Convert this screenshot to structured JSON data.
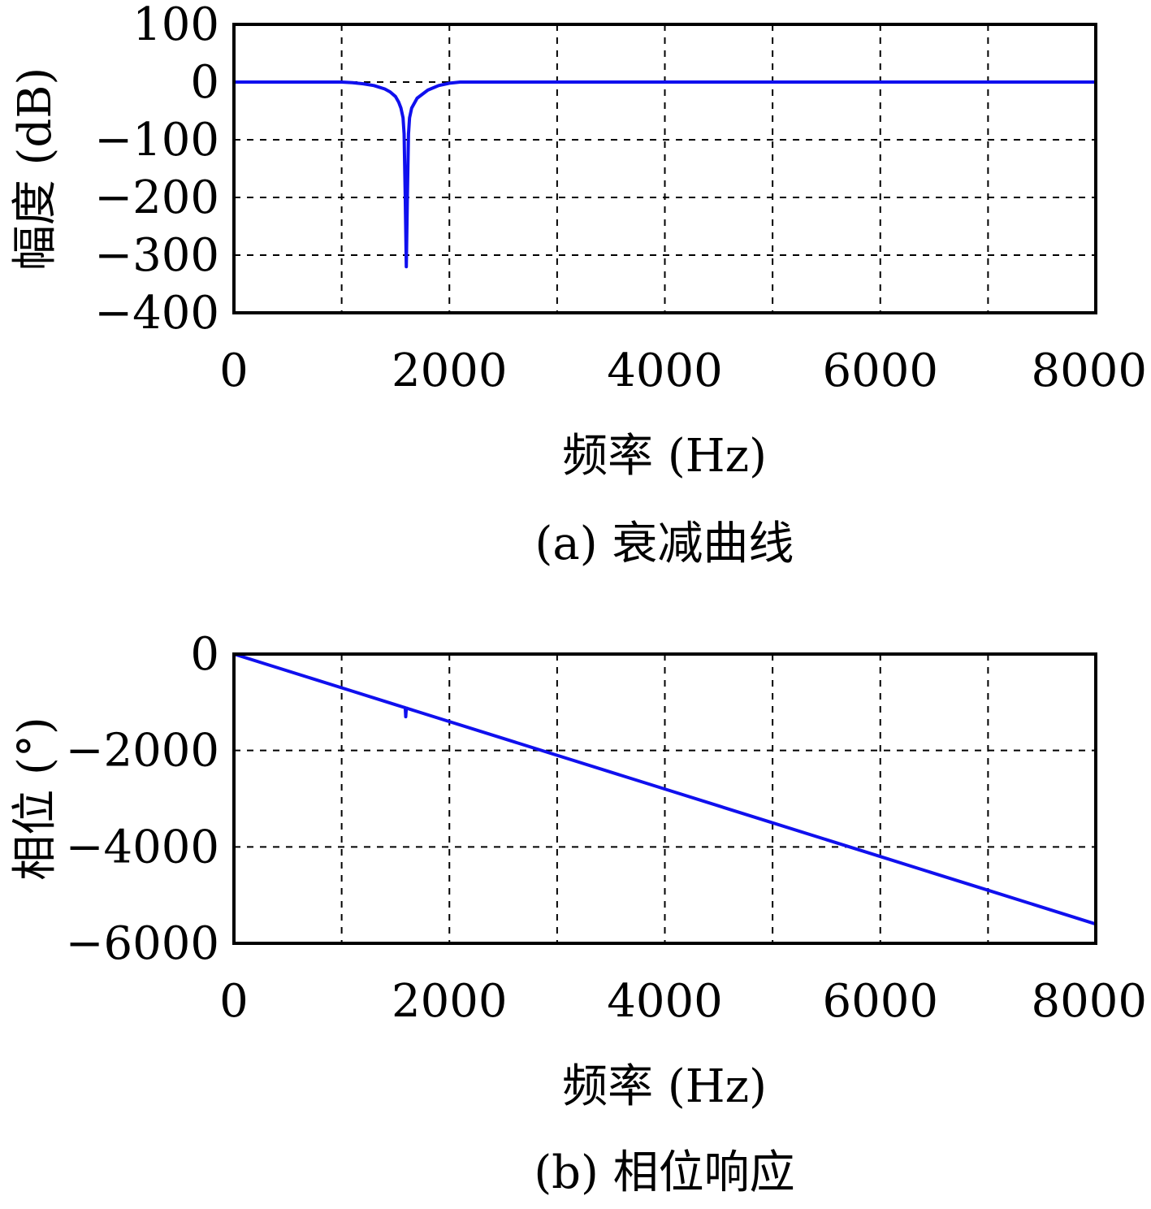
{
  "chart_data": [
    {
      "type": "line",
      "caption": "(a) 衰减曲线",
      "xlabel": "频率 (Hz)",
      "ylabel": "幅度 (dB)",
      "xlim": [
        0,
        8000
      ],
      "ylim": [
        -400,
        100
      ],
      "x_ticks": [
        0,
        2000,
        4000,
        6000,
        8000
      ],
      "x_tick_labels": [
        "0",
        "2000",
        "4000",
        "6000",
        "8000"
      ],
      "y_ticks": [
        100,
        0,
        -100,
        -200,
        -300,
        -400
      ],
      "y_tick_labels": [
        "100",
        "0",
        "−100",
        "−200",
        "−300",
        "−400"
      ],
      "grid": true,
      "color": "#1010ee",
      "series": [
        {
          "x": [
            0,
            1000,
            1100,
            1200,
            1300,
            1400,
            1450,
            1500,
            1530,
            1550,
            1570,
            1580,
            1590,
            1600,
            1610,
            1620,
            1630,
            1650,
            1700,
            1800,
            1900,
            2000,
            2100,
            3000,
            4000,
            5000,
            6000,
            7000,
            8000
          ],
          "y": [
            0,
            0,
            -1,
            -3,
            -6,
            -12,
            -17,
            -25,
            -35,
            -45,
            -62,
            -90,
            -200,
            -320,
            -200,
            -90,
            -62,
            -45,
            -28,
            -14,
            -6,
            -2,
            0,
            0,
            0,
            0,
            0,
            0,
            0
          ]
        }
      ]
    },
    {
      "type": "line",
      "caption": "(b) 相位响应",
      "xlabel": "频率 (Hz)",
      "ylabel": "相位 (°)",
      "xlim": [
        0,
        8000
      ],
      "ylim": [
        -6000,
        0
      ],
      "x_ticks": [
        0,
        2000,
        4000,
        6000,
        8000
      ],
      "x_tick_labels": [
        "0",
        "2000",
        "4000",
        "6000",
        "8000"
      ],
      "y_ticks": [
        0,
        -2000,
        -4000,
        -6000
      ],
      "y_tick_labels": [
        "0",
        "−2000",
        "−4000",
        "−6000"
      ],
      "grid": true,
      "color": "#1010ee",
      "series": [
        {
          "x": [
            0,
            1000,
            1500,
            1580,
            1590,
            1595,
            1600,
            1605,
            1610,
            2000,
            3000,
            4000,
            5000,
            6000,
            7000,
            8000
          ],
          "y": [
            0,
            -700,
            -1050,
            -1106,
            -1113,
            -1300,
            -1120,
            -1123,
            -1127,
            -1400,
            -2100,
            -2800,
            -3500,
            -4200,
            -4900,
            -5600
          ]
        }
      ]
    }
  ]
}
